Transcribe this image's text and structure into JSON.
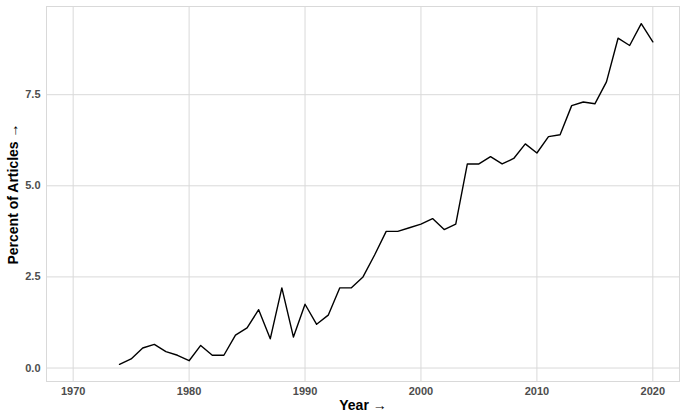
{
  "chart_data": {
    "type": "line",
    "x_label": "Year",
    "y_label": "Percent of Articles",
    "x": [
      1974,
      1975,
      1976,
      1977,
      1978,
      1979,
      1980,
      1981,
      1982,
      1983,
      1984,
      1985,
      1986,
      1987,
      1988,
      1989,
      1990,
      1991,
      1992,
      1993,
      1994,
      1995,
      1996,
      1997,
      1998,
      1999,
      2000,
      2001,
      2002,
      2003,
      2004,
      2005,
      2006,
      2007,
      2008,
      2009,
      2010,
      2011,
      2012,
      2013,
      2014,
      2015,
      2016,
      2017,
      2018,
      2019,
      2020
    ],
    "values": [
      0.1,
      0.25,
      0.55,
      0.65,
      0.45,
      0.35,
      0.2,
      0.62,
      0.35,
      0.35,
      0.9,
      1.1,
      1.6,
      0.8,
      2.2,
      0.85,
      1.75,
      1.2,
      1.45,
      2.2,
      2.2,
      2.5,
      3.1,
      3.75,
      3.75,
      3.85,
      3.95,
      4.1,
      3.8,
      3.95,
      5.6,
      5.6,
      5.8,
      5.6,
      5.75,
      6.15,
      5.9,
      6.35,
      6.4,
      7.2,
      7.3,
      7.25,
      7.85,
      9.05,
      8.85,
      9.45,
      8.95
    ],
    "color": "#000000",
    "xlim": [
      1967.7,
      2022.3
    ],
    "xticks": [
      1970,
      1980,
      1990,
      2000,
      2010,
      2020
    ],
    "ylim": [
      -0.37,
      9.92
    ],
    "yticks": [
      {
        "value": 0,
        "label": "0.0"
      },
      2.5,
      {
        "value": 5,
        "label": "5.0"
      },
      7.5
    ],
    "grid": true
  }
}
